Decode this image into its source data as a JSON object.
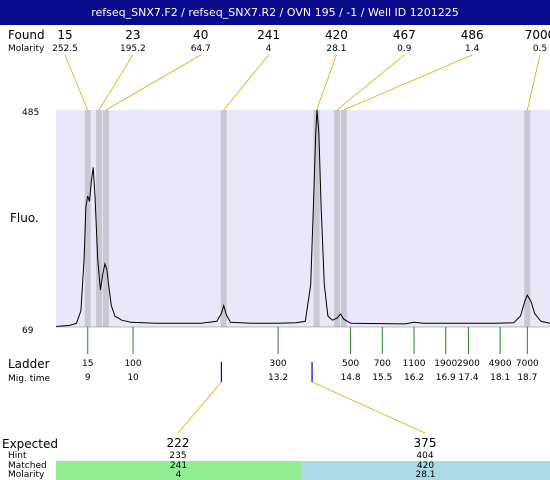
{
  "title": "refseq_SNX7.F2 / refseq_SNX7.R2 / OVN 195 / -1 / Well ID 1201225",
  "labels": {
    "found": "Found",
    "molarity": "Molarity",
    "fluo": "Fluo.",
    "ladder": "Ladder",
    "mig_time": "Mig. time",
    "expected": "Expected",
    "hint": "Hint",
    "matched": "Matched",
    "molarity_bottom": "Molarity"
  },
  "colors": {
    "title_bg": "#0a0a8c",
    "plot_bg": "#e8e8f8",
    "found_leader": "#f0a000",
    "ladder_tick": "#228822",
    "expected_tick": "#0000cc",
    "matched_left": "#90ee90",
    "matched_right": "#add8e6"
  },
  "chart_data": {
    "type": "line",
    "ylabel": "Fluo.",
    "ylim": [
      69,
      485
    ],
    "xlim": [
      8.3,
      19.2
    ],
    "found_peaks": [
      {
        "size": "15",
        "molarity": "252.5",
        "mig_time": 9.0
      },
      {
        "size": "23",
        "molarity": "195.2",
        "mig_time": 9.25
      },
      {
        "size": "40",
        "molarity": "64.7",
        "mig_time": 9.4
      },
      {
        "size": "241",
        "molarity": "4",
        "mig_time": 12.0
      },
      {
        "size": "420",
        "molarity": "28.1",
        "mig_time": 14.05
      },
      {
        "size": "467",
        "molarity": "0.9",
        "mig_time": 14.5
      },
      {
        "size": "486",
        "molarity": "1.4",
        "mig_time": 14.65
      },
      {
        "size": "7000",
        "molarity": "0.5",
        "mig_time": 18.7
      }
    ],
    "ladder": [
      {
        "size": "15",
        "time": "9",
        "t": 9.0
      },
      {
        "size": "100",
        "time": "10",
        "t": 10.0
      },
      {
        "size": "300",
        "time": "13.2",
        "t": 13.2
      },
      {
        "size": "500",
        "time": "14.8",
        "t": 14.8
      },
      {
        "size": "700",
        "time": "15.5",
        "t": 15.5
      },
      {
        "size": "1100",
        "time": "16.2",
        "t": 16.2
      },
      {
        "size": "1900",
        "time": "16.9",
        "t": 16.9
      },
      {
        "size": "2900",
        "time": "17.4",
        "t": 17.4
      },
      {
        "size": "4900",
        "time": "18.1",
        "t": 18.1
      },
      {
        "size": "7000",
        "time": "18.7",
        "t": 18.7
      }
    ],
    "trace": [
      [
        8.3,
        70
      ],
      [
        8.6,
        72
      ],
      [
        8.75,
        76
      ],
      [
        8.85,
        100
      ],
      [
        8.92,
        200
      ],
      [
        8.96,
        300
      ],
      [
        9.0,
        320
      ],
      [
        9.04,
        310
      ],
      [
        9.08,
        350
      ],
      [
        9.12,
        375
      ],
      [
        9.16,
        320
      ],
      [
        9.22,
        200
      ],
      [
        9.28,
        140
      ],
      [
        9.33,
        170
      ],
      [
        9.38,
        190
      ],
      [
        9.42,
        180
      ],
      [
        9.46,
        150
      ],
      [
        9.52,
        110
      ],
      [
        9.6,
        90
      ],
      [
        9.75,
        82
      ],
      [
        9.95,
        78
      ],
      [
        10.5,
        76
      ],
      [
        11.5,
        76
      ],
      [
        11.85,
        80
      ],
      [
        11.95,
        95
      ],
      [
        12.0,
        110
      ],
      [
        12.06,
        92
      ],
      [
        12.15,
        78
      ],
      [
        12.6,
        76
      ],
      [
        13.2,
        76
      ],
      [
        13.6,
        77
      ],
      [
        13.8,
        80
      ],
      [
        13.92,
        150
      ],
      [
        13.98,
        300
      ],
      [
        14.03,
        440
      ],
      [
        14.06,
        485
      ],
      [
        14.1,
        440
      ],
      [
        14.15,
        300
      ],
      [
        14.22,
        150
      ],
      [
        14.3,
        90
      ],
      [
        14.4,
        82
      ],
      [
        14.5,
        86
      ],
      [
        14.58,
        94
      ],
      [
        14.65,
        84
      ],
      [
        14.8,
        76
      ],
      [
        16.0,
        75
      ],
      [
        16.2,
        78
      ],
      [
        16.4,
        76
      ],
      [
        17.0,
        76
      ],
      [
        18.0,
        76
      ],
      [
        18.4,
        77
      ],
      [
        18.55,
        90
      ],
      [
        18.65,
        120
      ],
      [
        18.7,
        130
      ],
      [
        18.78,
        118
      ],
      [
        18.86,
        95
      ],
      [
        19.0,
        80
      ],
      [
        19.2,
        76
      ]
    ],
    "expected": [
      {
        "size": "222",
        "hint": "235",
        "matched": "241",
        "molarity": "4",
        "t": 11.95
      },
      {
        "size": "375",
        "hint": "404",
        "matched": "420",
        "molarity": "28.1",
        "t": 13.95
      }
    ]
  }
}
